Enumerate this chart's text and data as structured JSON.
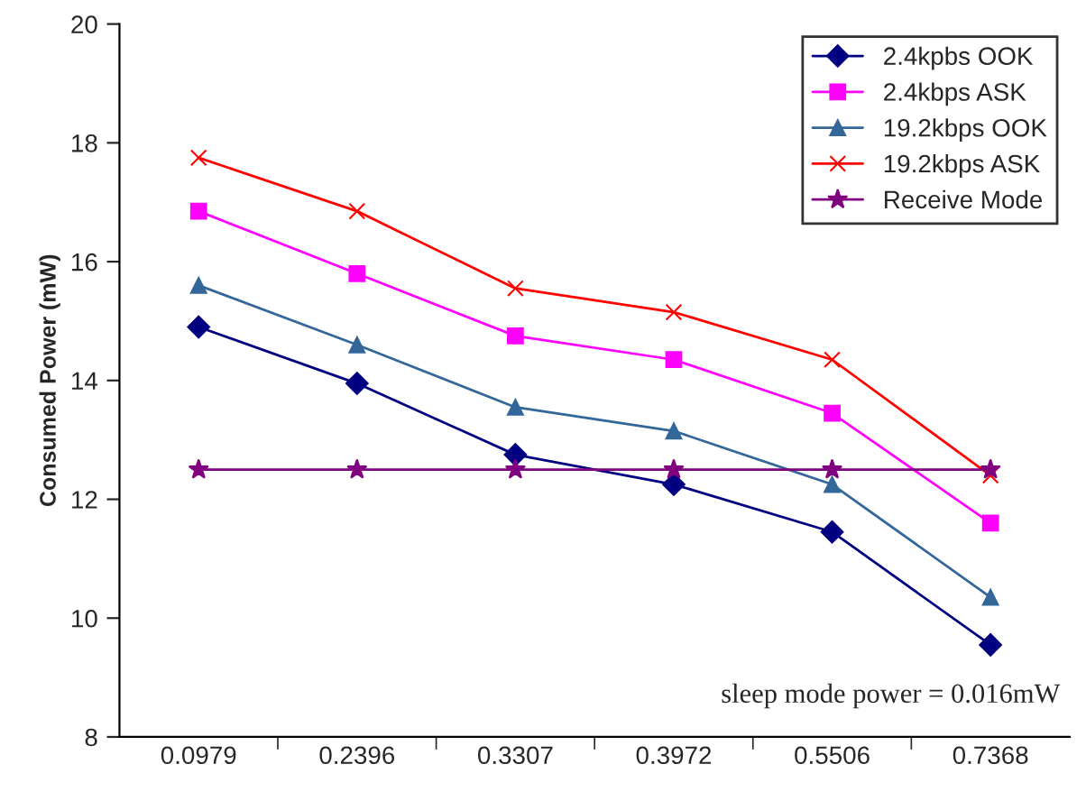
{
  "chart_data": {
    "type": "line",
    "ylabel": "Consumed Power (mW)",
    "categories": [
      "0.0979",
      "0.2396",
      "0.3307",
      "0.3972",
      "0.5506",
      "0.7368"
    ],
    "series": [
      {
        "name": "2.4kpbs OOK",
        "color": "#000080",
        "marker": "diamond",
        "values": [
          14.9,
          13.95,
          12.75,
          12.25,
          11.45,
          9.55
        ]
      },
      {
        "name": "2.4kbps ASK",
        "color": "#ff00ff",
        "marker": "square",
        "values": [
          16.85,
          15.8,
          14.75,
          14.35,
          13.45,
          11.6
        ]
      },
      {
        "name": "19.2kbps OOK",
        "color": "#336699",
        "marker": "triangle",
        "values": [
          15.6,
          14.6,
          13.55,
          13.15,
          12.25,
          10.35
        ]
      },
      {
        "name": "19.2kbps ASK",
        "color": "#ff0000",
        "marker": "cross",
        "values": [
          17.75,
          16.85,
          15.55,
          15.15,
          14.35,
          12.4
        ]
      },
      {
        "name": "Receive Mode",
        "color": "#800080",
        "marker": "star",
        "values": [
          12.5,
          12.5,
          12.5,
          12.5,
          12.5,
          12.5
        ]
      }
    ],
    "ylim": [
      8,
      20
    ],
    "yticks": [
      8,
      10,
      12,
      14,
      16,
      18,
      20
    ],
    "grid": false,
    "legend": "top right",
    "annotations": [
      "sleep mode power = 0.016mW"
    ]
  }
}
